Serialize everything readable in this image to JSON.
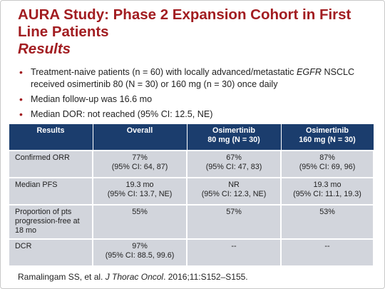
{
  "title": {
    "line1": "AURA Study: Phase 2 Expansion Cohort in First",
    "line2": "Line Patients",
    "subtitle": "Results"
  },
  "bullets": [
    {
      "pre": "Treatment-naive patients (n = 60) with locally advanced/metastatic ",
      "italic": "EGFR",
      "post": " NSCLC received osimertinib 80 (N = 30) or 160 mg (n = 30) once daily"
    },
    {
      "text": "Median follow-up was 16.6 mo"
    },
    {
      "text": "Median DOR: not reached (95% CI: 12.5, NE)"
    }
  ],
  "table": {
    "headers": [
      {
        "line1": "Results",
        "line2": ""
      },
      {
        "line1": "Overall",
        "line2": ""
      },
      {
        "line1": "Osimertinib",
        "line2": "80 mg (N = 30)"
      },
      {
        "line1": "Osimertinib",
        "line2": "160 mg (N = 30)"
      }
    ],
    "rows": [
      {
        "label": "Confirmed ORR",
        "cells": [
          {
            "line1": "77%",
            "line2": "(95% CI: 64, 87)"
          },
          {
            "line1": "67%",
            "line2": "(95% CI: 47, 83)"
          },
          {
            "line1": "87%",
            "line2": "(95% CI: 69, 96)"
          }
        ]
      },
      {
        "label": "Median PFS",
        "cells": [
          {
            "line1": "19.3 mo",
            "line2": "(95% CI: 13.7, NE)"
          },
          {
            "line1": "NR",
            "line2": "(95% CI: 12.3,  NE)"
          },
          {
            "line1": "19.3 mo",
            "line2": "(95% CI: 11.1, 19.3)"
          }
        ]
      },
      {
        "label": "Proportion of pts progression-free at 18 mo",
        "cells": [
          {
            "line1": "55%",
            "line2": ""
          },
          {
            "line1": "57%",
            "line2": ""
          },
          {
            "line1": "53%",
            "line2": ""
          }
        ]
      },
      {
        "label": "DCR",
        "cells": [
          {
            "line1": "97%",
            "line2": "(95% CI: 88.5, 99.6)"
          },
          {
            "line1": "--",
            "line2": ""
          },
          {
            "line1": "--",
            "line2": ""
          }
        ]
      }
    ]
  },
  "citation": {
    "authors": "Ramalingam SS, et al. ",
    "journal": "J Thorac Oncol",
    "details": ". 2016;11:S152–S155."
  },
  "colors": {
    "title": "#a21d21",
    "header_bg": "#1b3d6d",
    "cell_bg": "#d2d5dc"
  }
}
